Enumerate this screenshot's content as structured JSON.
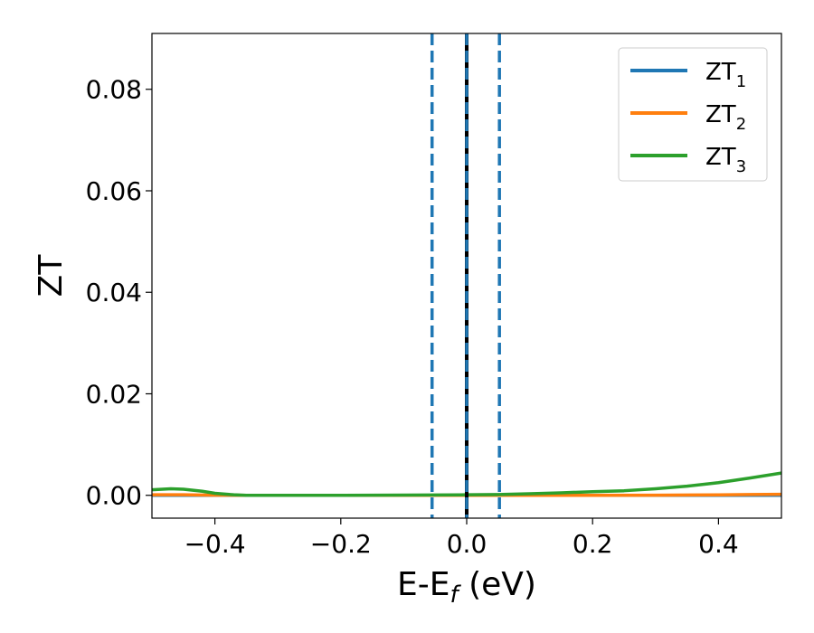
{
  "chart_data": {
    "type": "line",
    "xlabel": {
      "main": "E-E",
      "sub": "f",
      "suffix": " (eV)"
    },
    "ylabel": "ZT",
    "xlim": [
      -0.5,
      0.5
    ],
    "ylim": [
      -0.0045,
      0.091
    ],
    "xticks": [
      -0.4,
      -0.2,
      0.0,
      0.2,
      0.4
    ],
    "xtick_labels": [
      "−0.4",
      "−0.2",
      "0.0",
      "0.2",
      "0.4"
    ],
    "yticks": [
      0.0,
      0.02,
      0.04,
      0.06,
      0.08
    ],
    "ytick_labels": [
      "0.00",
      "0.02",
      "0.04",
      "0.06",
      "0.08"
    ],
    "grid": false,
    "legend_position": "top-right",
    "series": [
      {
        "name": "ZT",
        "subscript": "1",
        "color": "#1f77b4",
        "x": [
          -0.5,
          0.5
        ],
        "y": [
          0.0,
          0.0
        ]
      },
      {
        "name": "ZT",
        "subscript": "2",
        "color": "#ff7f0e",
        "x": [
          -0.5,
          -0.45,
          -0.4,
          -0.35,
          -0.3,
          -0.2,
          -0.1,
          0.0,
          0.1,
          0.2,
          0.3,
          0.4,
          0.45,
          0.5
        ],
        "y": [
          0.0001,
          0.0001,
          3e-05,
          0.0,
          0.0,
          0.0,
          0.0,
          0.0,
          0.0,
          0.0,
          3e-05,
          8e-05,
          0.00015,
          0.0002
        ]
      },
      {
        "name": "ZT",
        "subscript": "3",
        "color": "#2ca02c",
        "x": [
          -0.5,
          -0.47,
          -0.45,
          -0.42,
          -0.4,
          -0.37,
          -0.35,
          -0.3,
          -0.2,
          -0.1,
          0.0,
          0.05,
          0.1,
          0.15,
          0.2,
          0.25,
          0.3,
          0.35,
          0.4,
          0.45,
          0.5
        ],
        "y": [
          0.0011,
          0.0013,
          0.0012,
          0.0008,
          0.0004,
          0.0001,
          0.0,
          0.0,
          0.0,
          5e-05,
          0.0001,
          0.00015,
          0.0003,
          0.0005,
          0.0007,
          0.0009,
          0.0013,
          0.0018,
          0.0025,
          0.0034,
          0.0044
        ]
      }
    ],
    "vlines": [
      {
        "x": -0.055,
        "color": "#1f77b4",
        "style": "dashed"
      },
      {
        "x": 0.0,
        "color": "#000000",
        "style": "solid"
      },
      {
        "x": 0.0,
        "color": "#1f77b4",
        "style": "dashed"
      },
      {
        "x": 0.052,
        "color": "#1f77b4",
        "style": "dashed"
      }
    ]
  }
}
